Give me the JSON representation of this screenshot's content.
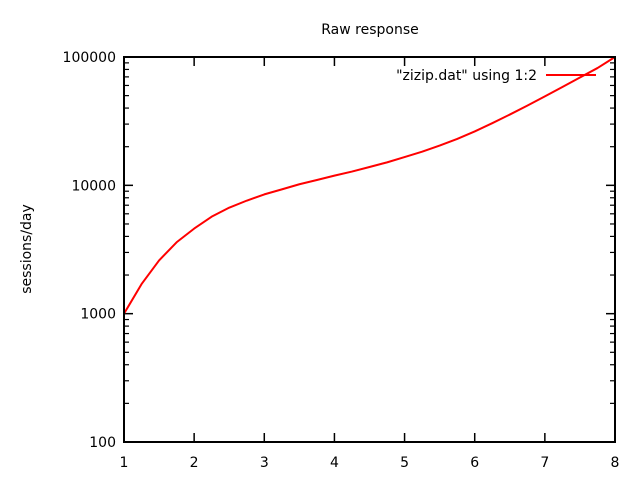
{
  "chart_data": {
    "type": "line",
    "title": "Raw response",
    "xlabel": "",
    "ylabel": "sessions/day",
    "xlim": [
      1,
      8
    ],
    "ylim": [
      100,
      100000
    ],
    "yscale": "log",
    "grid": false,
    "legend_position": "top-right",
    "x_ticks": [
      1,
      2,
      3,
      4,
      5,
      6,
      7,
      8
    ],
    "x_tick_labels": [
      "1",
      "2",
      "3",
      "4",
      "5",
      "6",
      "7",
      "8"
    ],
    "y_ticks": [
      100,
      1000,
      10000,
      100000
    ],
    "y_tick_labels": [
      "100",
      "1000",
      "10000",
      "100000"
    ],
    "series": [
      {
        "name": "\"zizip.dat\" using 1:2",
        "color": "#ff0000",
        "x": [
          1,
          1.25,
          1.5,
          1.75,
          2,
          2.25,
          2.5,
          2.75,
          3,
          3.25,
          3.5,
          3.75,
          4,
          4.25,
          4.5,
          4.75,
          5,
          5.25,
          5.5,
          5.75,
          6,
          6.25,
          6.5,
          6.75,
          7,
          7.25,
          7.5,
          7.75,
          8
        ],
        "y": [
          1000,
          1700,
          2600,
          3600,
          4600,
          5700,
          6700,
          7600,
          8500,
          9300,
          10200,
          11000,
          11900,
          12800,
          13900,
          15100,
          16600,
          18300,
          20400,
          23000,
          26300,
          30500,
          35600,
          41800,
          49300,
          58400,
          69200,
          82000,
          100000
        ]
      }
    ]
  }
}
